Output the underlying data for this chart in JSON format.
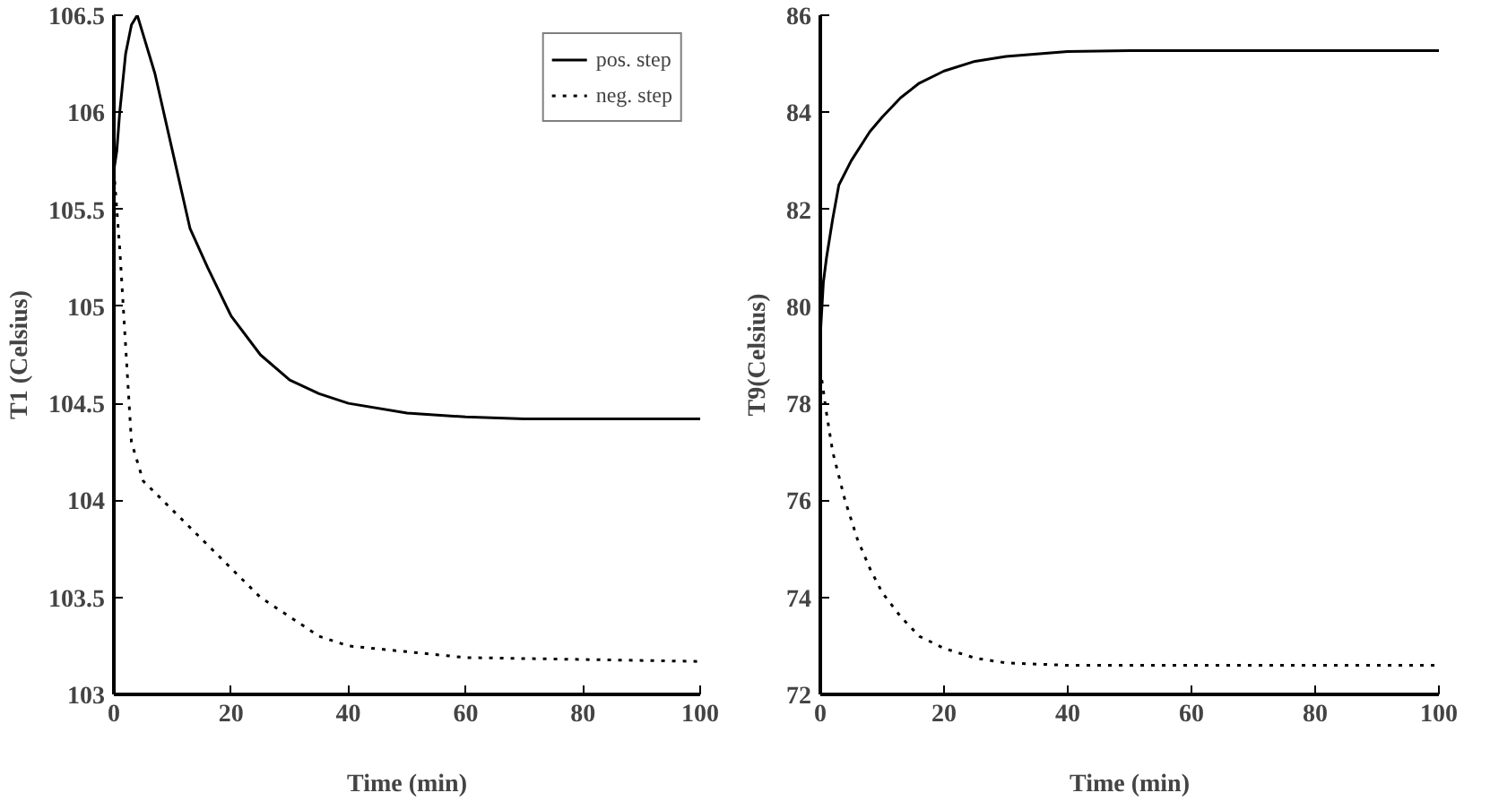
{
  "chart_data": [
    {
      "type": "line",
      "xlabel": "Time (min)",
      "ylabel": "T1 (Celsius)",
      "xlim": [
        0,
        100
      ],
      "ylim": [
        103,
        106.5
      ],
      "xticks": [
        0,
        20,
        40,
        60,
        80,
        100
      ],
      "yticks": [
        103,
        103.5,
        104,
        104.5,
        105,
        105.5,
        106,
        106.5
      ],
      "grid": false,
      "legend": "top right",
      "series": [
        {
          "name": "pos. step",
          "color": "#000000",
          "line_style": "solid",
          "x": [
            0,
            0.5,
            1,
            2,
            3,
            4,
            5,
            7,
            10,
            13,
            16,
            20,
            25,
            30,
            35,
            40,
            50,
            60,
            70,
            100
          ],
          "values": [
            105.7,
            105.8,
            106.0,
            106.3,
            106.45,
            106.5,
            106.4,
            106.2,
            105.8,
            105.4,
            105.2,
            104.95,
            104.75,
            104.62,
            104.55,
            104.5,
            104.45,
            104.43,
            104.42,
            104.42
          ]
        },
        {
          "name": "neg. step",
          "color": "#000000",
          "line_style": "dotted",
          "x": [
            0,
            1,
            2,
            3,
            5,
            10,
            15,
            20,
            25,
            30,
            35,
            40,
            50,
            60,
            80,
            100
          ],
          "values": [
            105.7,
            105.3,
            104.8,
            104.3,
            104.1,
            103.95,
            103.8,
            103.65,
            103.5,
            103.4,
            103.3,
            103.25,
            103.22,
            103.19,
            103.18,
            103.17
          ]
        }
      ]
    },
    {
      "type": "line",
      "xlabel": "Time (min)",
      "ylabel": "T9(Celsius)",
      "xlim": [
        0,
        100
      ],
      "ylim": [
        72,
        86
      ],
      "xticks": [
        0,
        20,
        40,
        60,
        80,
        100
      ],
      "yticks": [
        72,
        74,
        76,
        78,
        80,
        82,
        84,
        86
      ],
      "grid": false,
      "legend": false,
      "series": [
        {
          "color": "#000000",
          "line_style": "solid",
          "x": [
            0,
            0.5,
            1,
            2,
            3,
            5,
            8,
            10,
            13,
            16,
            20,
            25,
            30,
            40,
            50,
            100
          ],
          "values": [
            79.4,
            80.5,
            81.0,
            81.8,
            82.5,
            83.0,
            83.6,
            83.9,
            84.3,
            84.6,
            84.85,
            85.05,
            85.15,
            85.25,
            85.27,
            85.27
          ]
        },
        {
          "color": "#000000",
          "line_style": "dotted",
          "x": [
            0,
            1,
            2,
            4,
            6,
            8,
            10,
            13,
            16,
            20,
            25,
            30,
            40,
            100
          ],
          "values": [
            78.7,
            77.8,
            77.0,
            76.0,
            75.2,
            74.6,
            74.1,
            73.6,
            73.2,
            72.95,
            72.75,
            72.65,
            72.6,
            72.6
          ]
        }
      ]
    }
  ]
}
